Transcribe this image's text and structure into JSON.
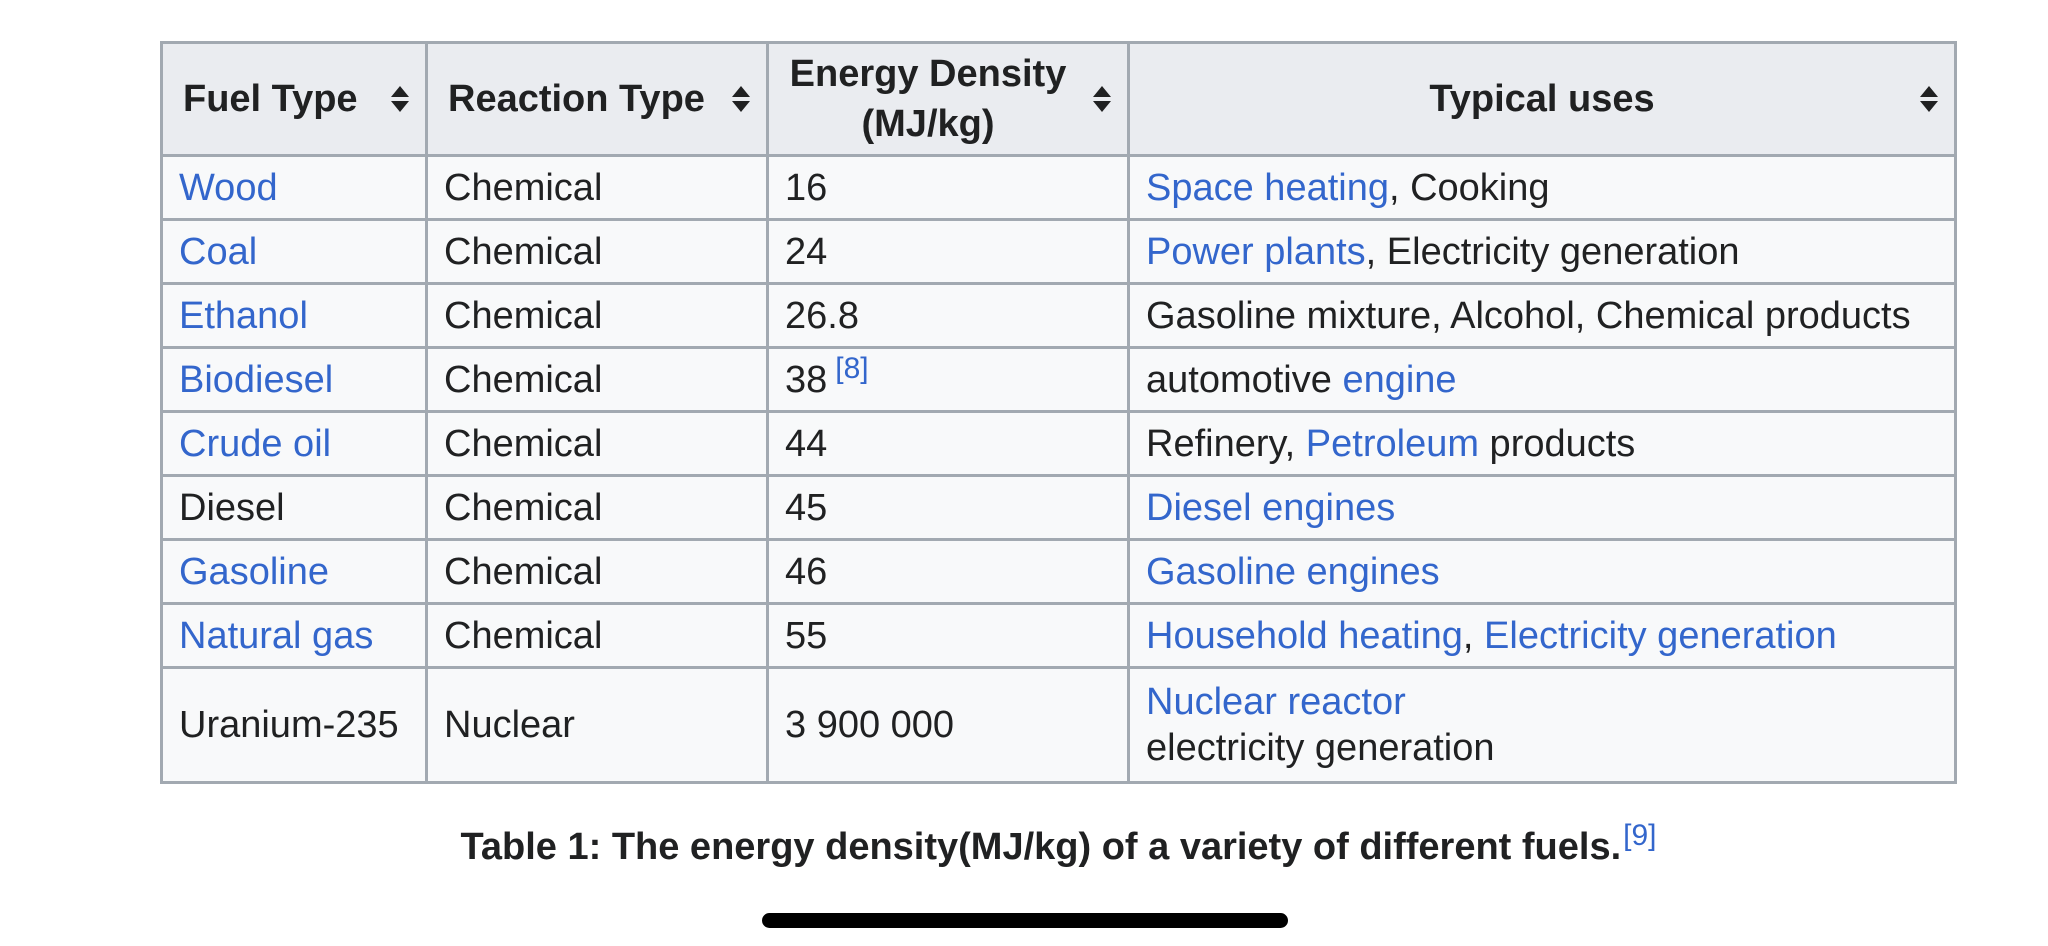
{
  "table": {
    "headers": [
      {
        "label": "Fuel Type"
      },
      {
        "label": "Reaction Type"
      },
      {
        "label_line1": "Energy Density",
        "label_line2": "(MJ/kg)"
      },
      {
        "label": "Typical uses"
      }
    ],
    "rows": [
      {
        "fuel": "Wood",
        "fuel_link": true,
        "reaction": "Chemical",
        "density": "16",
        "density_ref": "",
        "uses": [
          {
            "text": "Space heating",
            "link": true
          },
          {
            "text": ", Cooking",
            "link": false
          }
        ]
      },
      {
        "fuel": "Coal",
        "fuel_link": true,
        "reaction": "Chemical",
        "density": "24",
        "density_ref": "",
        "uses": [
          {
            "text": "Power plants",
            "link": true
          },
          {
            "text": ", Electricity generation",
            "link": false
          }
        ]
      },
      {
        "fuel": "Ethanol",
        "fuel_link": true,
        "reaction": "Chemical",
        "density": "26.8",
        "density_ref": "",
        "uses": [
          {
            "text": "Gasoline mixture, Alcohol, Chemical products",
            "link": false
          }
        ]
      },
      {
        "fuel": "Biodiesel",
        "fuel_link": true,
        "reaction": "Chemical",
        "density": "38",
        "density_ref": "[8]",
        "uses": [
          {
            "text": "automotive ",
            "link": false
          },
          {
            "text": "engine",
            "link": true
          }
        ]
      },
      {
        "fuel": "Crude oil",
        "fuel_link": true,
        "reaction": "Chemical",
        "density": "44",
        "density_ref": "",
        "uses": [
          {
            "text": "Refinery, ",
            "link": false
          },
          {
            "text": "Petroleum",
            "link": true
          },
          {
            "text": " products",
            "link": false
          }
        ]
      },
      {
        "fuel": "Diesel",
        "fuel_link": false,
        "reaction": "Chemical",
        "density": "45",
        "density_ref": "",
        "uses": [
          {
            "text": "Diesel engines",
            "link": true
          }
        ]
      },
      {
        "fuel": "Gasoline",
        "fuel_link": true,
        "reaction": "Chemical",
        "density": "46",
        "density_ref": "",
        "uses": [
          {
            "text": "Gasoline engines",
            "link": true
          }
        ]
      },
      {
        "fuel": "Natural gas",
        "fuel_link": true,
        "reaction": "Chemical",
        "density": "55",
        "density_ref": "",
        "uses": [
          {
            "text": "Household heating",
            "link": true
          },
          {
            "text": ", ",
            "link": false
          },
          {
            "text": "Electricity generation",
            "link": true
          }
        ]
      },
      {
        "fuel": "Uranium-235",
        "fuel_link": false,
        "reaction": "Nuclear",
        "density": "3 900 000",
        "density_ref": "",
        "uses": [
          {
            "text": "Nuclear reactor",
            "link": true
          },
          {
            "text": "electricity generation",
            "link": false,
            "break_before": true
          }
        ]
      }
    ]
  },
  "caption": {
    "text": "Table 1: The energy density(MJ/kg) of a variety of different fuels.",
    "ref": "[9]"
  },
  "colors": {
    "link": "#3366cc",
    "text": "#202122",
    "header_bg": "#eaecf0",
    "cell_bg": "#f8f9fa",
    "border": "#a2a9b1"
  },
  "icons": {
    "sort": "sort-arrows-icon"
  }
}
